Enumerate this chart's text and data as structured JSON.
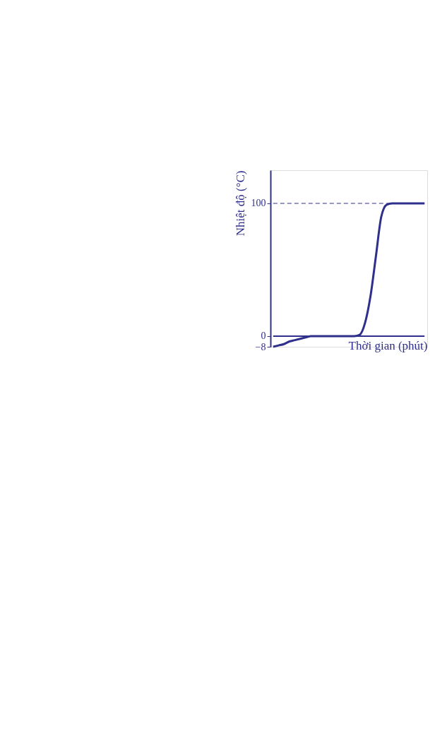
{
  "chart_data": {
    "type": "line",
    "xlabel": "Thời gian (phút)",
    "ylabel": "Nhiệt độ (°C)",
    "categories": [
      null,
      null,
      null,
      null,
      null,
      null,
      null,
      null,
      null,
      null,
      null,
      null,
      null,
      null,
      null,
      null,
      null,
      null,
      null,
      null,
      null,
      null,
      null,
      null,
      null,
      null,
      null,
      null,
      null
    ],
    "series": [
      {
        "color": "#2f2f8c",
        "values": [
          -8,
          -7,
          -6,
          -4,
          -3,
          -2,
          -1,
          0,
          0,
          0,
          0,
          0,
          0,
          0,
          0,
          0,
          1,
          10,
          30,
          60,
          90,
          99,
          100,
          100,
          100,
          100,
          100,
          100,
          100
        ]
      }
    ],
    "ylim": [
      -8,
      125
    ],
    "yticks": [
      -8,
      0,
      100
    ],
    "ref_lines": [
      {
        "axis": "y",
        "value": 100,
        "line_style": "dashed",
        "color": "#2f2f8c"
      },
      {
        "axis": "y",
        "value": 0,
        "line_style": "solid",
        "color": "#2f2f8c"
      }
    ],
    "grid": false,
    "marker": "none",
    "line_style": "solid"
  }
}
